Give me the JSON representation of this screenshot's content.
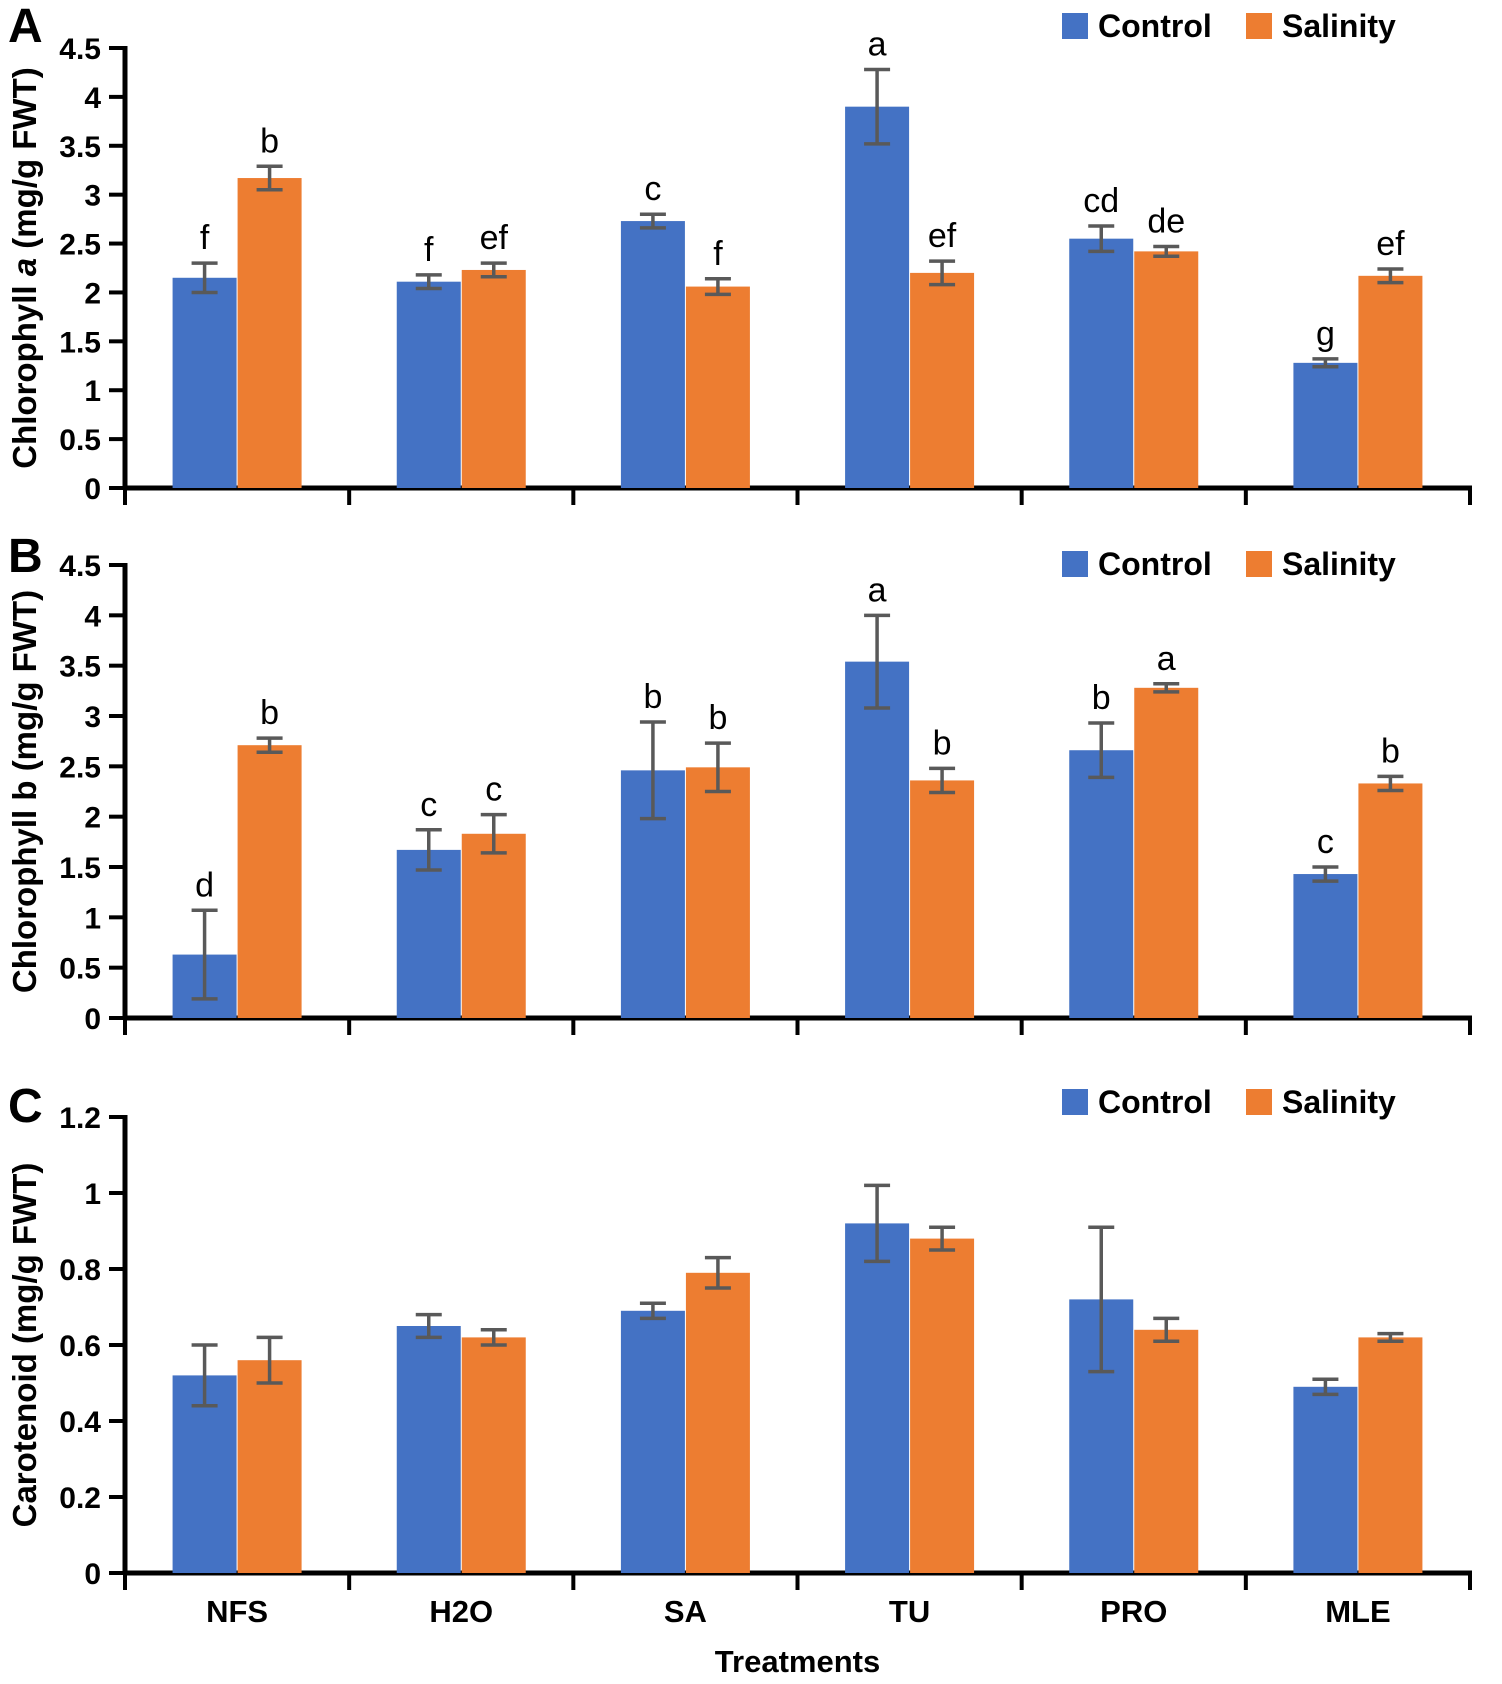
{
  "figure": {
    "x_axis_title": "Treatments",
    "categories": [
      "NFS",
      "H2O",
      "SA",
      "TU",
      "PRO",
      "MLE"
    ],
    "legend": {
      "control_label": "Control",
      "salinity_label": "Salinity"
    },
    "colors": {
      "control": "#4472C4",
      "salinity": "#ED7D31",
      "error_bar": "#595959",
      "axis": "#000000",
      "text": "#000000"
    }
  },
  "chart_data": [
    {
      "type": "bar",
      "panel_label": "A",
      "ylabel": "Chlorophyll a (mg/g FWT)",
      "ylabel_parts": [
        {
          "text": "Chlorophyll ",
          "italic": false
        },
        {
          "text": "a",
          "italic": true
        },
        {
          "text": " (mg/g FWT)",
          "italic": false
        }
      ],
      "ylim": [
        0,
        4.5
      ],
      "ytick_step": 0.5,
      "grid": false,
      "legend_position": "top-right",
      "categories": [
        "NFS",
        "H2O",
        "SA",
        "TU",
        "PRO",
        "MLE"
      ],
      "series": [
        {
          "name": "Control",
          "values": [
            2.15,
            2.11,
            2.73,
            3.9,
            2.55,
            1.28
          ],
          "errors": [
            0.15,
            0.07,
            0.07,
            0.38,
            0.13,
            0.04
          ],
          "sig_letters": [
            "f",
            "f",
            "c",
            "a",
            "cd",
            "g"
          ]
        },
        {
          "name": "Salinity",
          "values": [
            3.17,
            2.23,
            2.06,
            2.2,
            2.42,
            2.17
          ],
          "errors": [
            0.12,
            0.07,
            0.08,
            0.12,
            0.05,
            0.07
          ],
          "sig_letters": [
            "b",
            "ef",
            "f",
            "ef",
            "de",
            "ef"
          ]
        }
      ]
    },
    {
      "type": "bar",
      "panel_label": "B",
      "ylabel": "Chlorophyll b (mg/g FWT)",
      "ylabel_parts": [
        {
          "text": "Chlorophyll b (mg/g FWT)",
          "italic": false
        }
      ],
      "ylim": [
        0,
        4.5
      ],
      "ytick_step": 0.5,
      "grid": false,
      "legend_position": "top-right",
      "categories": [
        "NFS",
        "H2O",
        "SA",
        "TU",
        "PRO",
        "MLE"
      ],
      "series": [
        {
          "name": "Control",
          "values": [
            0.63,
            1.67,
            2.46,
            3.54,
            2.66,
            1.43
          ],
          "errors": [
            0.44,
            0.2,
            0.48,
            0.46,
            0.27,
            0.07
          ],
          "sig_letters": [
            "d",
            "c",
            "b",
            "a",
            "b",
            "c"
          ]
        },
        {
          "name": "Salinity",
          "values": [
            2.71,
            1.83,
            2.49,
            2.36,
            3.28,
            2.33
          ],
          "errors": [
            0.07,
            0.19,
            0.24,
            0.12,
            0.04,
            0.07
          ],
          "sig_letters": [
            "b",
            "c",
            "b",
            "b",
            "a",
            "b"
          ]
        }
      ]
    },
    {
      "type": "bar",
      "panel_label": "C",
      "ylabel": "Carotenoid (mg/g FWT)",
      "ylabel_parts": [
        {
          "text": "Carotenoid (mg/g FWT)",
          "italic": false
        }
      ],
      "ylim": [
        0,
        1.2
      ],
      "ytick_step": 0.2,
      "grid": false,
      "legend_position": "top-right",
      "categories": [
        "NFS",
        "H2O",
        "SA",
        "TU",
        "PRO",
        "MLE"
      ],
      "series": [
        {
          "name": "Control",
          "values": [
            0.52,
            0.65,
            0.69,
            0.92,
            0.72,
            0.49
          ],
          "errors": [
            0.08,
            0.03,
            0.02,
            0.1,
            0.19,
            0.02
          ],
          "sig_letters": []
        },
        {
          "name": "Salinity",
          "values": [
            0.56,
            0.62,
            0.79,
            0.88,
            0.64,
            0.62
          ],
          "errors": [
            0.06,
            0.02,
            0.04,
            0.03,
            0.03,
            0.01
          ],
          "sig_letters": []
        }
      ]
    }
  ]
}
